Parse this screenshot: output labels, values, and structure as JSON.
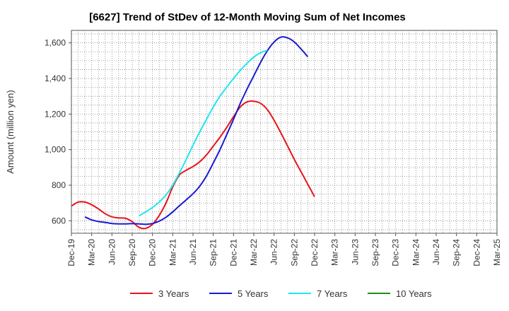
{
  "chart_data": {
    "type": "line",
    "title": "[6627]  Trend of StDev of 12-Month Moving Sum of Net Incomes",
    "ylabel": "Amount (million yen)",
    "xlabel": "",
    "ylim": [
      530,
      1670
    ],
    "yticks": [
      600,
      800,
      1000,
      1200,
      1400,
      1600
    ],
    "ytick_labels": [
      "600",
      "800",
      "1,000",
      "1,200",
      "1,400",
      "1,600"
    ],
    "x_labels": [
      "Dec-19",
      "Mar-20",
      "Jun-20",
      "Sep-20",
      "Dec-20",
      "Mar-21",
      "Jun-21",
      "Sep-21",
      "Dec-21",
      "Mar-22",
      "Jun-22",
      "Sep-22",
      "Dec-22",
      "Mar-23",
      "Jun-23",
      "Sep-23",
      "Dec-23",
      "Mar-24",
      "Jun-24",
      "Sep-24",
      "Dec-24",
      "Mar-25"
    ],
    "grid": true,
    "legend_position": "bottom",
    "series": [
      {
        "name": "3 Years",
        "color": "#e8141b",
        "start_index": 0,
        "values": [
          683,
          705,
          705,
          690,
          667,
          640,
          622,
          616,
          614,
          595,
          563,
          558,
          580,
          630,
          700,
          790,
          858,
          884,
          905,
          932,
          970,
          1020,
          1070,
          1125,
          1185,
          1240,
          1268,
          1272,
          1260,
          1225,
          1165,
          1095,
          1020,
          945,
          875,
          805,
          735
        ]
      },
      {
        "name": "5 Years",
        "color": "#1a1ad0",
        "start_index": 2,
        "values": [
          622,
          605,
          596,
          591,
          585,
          583,
          583,
          584,
          583,
          580,
          585,
          598,
          620,
          650,
          685,
          718,
          752,
          795,
          852,
          925,
          1000,
          1085,
          1170,
          1260,
          1340,
          1415,
          1490,
          1555,
          1605,
          1632,
          1628,
          1605,
          1565,
          1522
        ]
      },
      {
        "name": "7 Years",
        "color": "#22e5ef",
        "start_index": 10,
        "values": [
          628,
          650,
          675,
          705,
          745,
          800,
          870,
          945,
          1025,
          1100,
          1170,
          1240,
          1300,
          1352,
          1400,
          1445,
          1485,
          1520,
          1545,
          1558
        ]
      },
      {
        "name": "10 Years",
        "color": "#1e8c1e",
        "start_index": 0,
        "values": []
      }
    ]
  }
}
